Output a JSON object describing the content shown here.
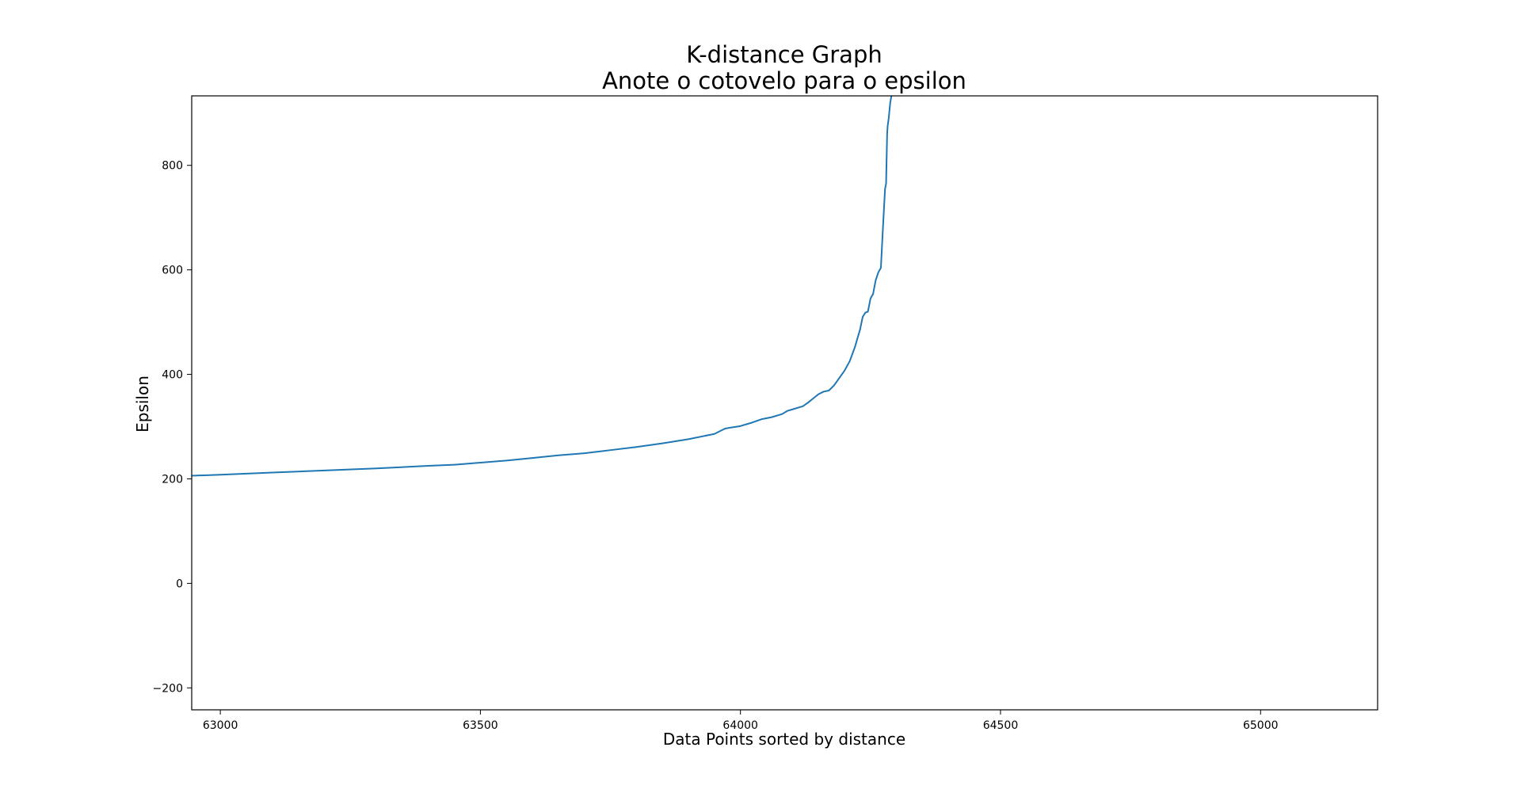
{
  "chart_data": {
    "type": "line",
    "title": "K-distance Graph",
    "subtitle": "Anote o cotovelo para o epsilon",
    "xlabel": "Data Points sorted by distance",
    "ylabel": "Epsilon",
    "xlim": [
      62945,
      65225
    ],
    "ylim": [
      -242,
      933
    ],
    "xticks": [
      63000,
      63500,
      64000,
      64500,
      65000
    ],
    "yticks": [
      -200,
      0,
      200,
      400,
      600,
      800
    ],
    "ytick_labels": [
      "−200",
      "0",
      "200",
      "400",
      "600",
      "800"
    ],
    "grid": false,
    "legend": "none",
    "series_color": "#1f77b4",
    "series": [
      {
        "x": [
          62945,
          63000,
          63100,
          63200,
          63300,
          63400,
          63450,
          63500,
          63550,
          63600,
          63650,
          63700,
          63750,
          63800,
          63850,
          63900,
          63950,
          63970,
          63980,
          64000,
          64020,
          64040,
          64060,
          64080,
          64090,
          64100,
          64120,
          64130,
          64140,
          64150,
          64160,
          64170,
          64180,
          64190,
          64200,
          64210,
          64220,
          64230,
          64235,
          64240,
          64245,
          64250,
          64255,
          64260,
          64265,
          64270,
          64275,
          64278,
          64280,
          64282,
          64283,
          64285,
          64287,
          64288,
          64290,
          64291
        ],
        "y": [
          206,
          208,
          212,
          216,
          220,
          225,
          227,
          231,
          235,
          240,
          245,
          249,
          255,
          261,
          268,
          276,
          286,
          296,
          298,
          301,
          307,
          314,
          318,
          324,
          330,
          333,
          339,
          346,
          354,
          362,
          367,
          369,
          379,
          393,
          407,
          425,
          452,
          486,
          510,
          518,
          520,
          545,
          554,
          580,
          595,
          604,
          700,
          755,
          765,
          860,
          875,
          890,
          910,
          920,
          932,
          933
        ]
      }
    ]
  }
}
